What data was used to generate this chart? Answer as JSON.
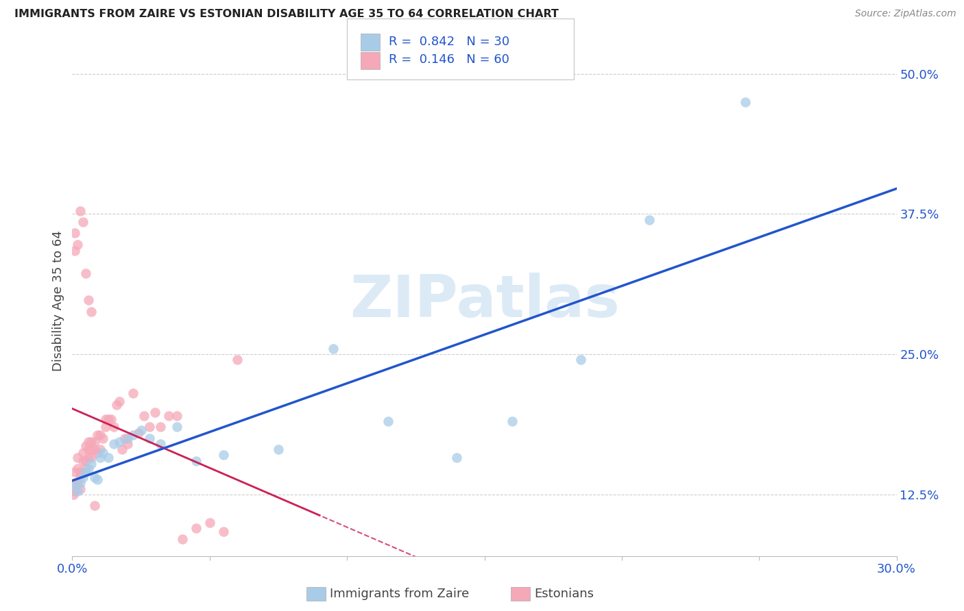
{
  "title": "IMMIGRANTS FROM ZAIRE VS ESTONIAN DISABILITY AGE 35 TO 64 CORRELATION CHART",
  "source": "Source: ZipAtlas.com",
  "ylabel": "Disability Age 35 to 64",
  "xlabel_legend1": "Immigrants from Zaire",
  "xlabel_legend2": "Estonians",
  "xlim": [
    0.0,
    0.3
  ],
  "ylim": [
    0.07,
    0.525
  ],
  "xticks": [
    0.0,
    0.05,
    0.1,
    0.15,
    0.2,
    0.25,
    0.3
  ],
  "xticklabels": [
    "0.0%",
    "",
    "",
    "",
    "",
    "",
    "30.0%"
  ],
  "ytick_positions": [
    0.125,
    0.25,
    0.375,
    0.5
  ],
  "ytick_labels": [
    "12.5%",
    "25.0%",
    "37.5%",
    "50.0%"
  ],
  "watermark": "ZIPatlas",
  "legend_R1": "0.842",
  "legend_N1": "30",
  "legend_R2": "0.146",
  "legend_N2": "60",
  "color_blue_scatter": "#a8cce8",
  "color_pink_scatter": "#f5a8b8",
  "color_blue_line": "#2255cc",
  "color_pink_line": "#cc2255",
  "color_legend_text": "#2255cc",
  "color_axis_right": "#2255cc",
  "color_axis_bottom": "#2255cc",
  "color_title": "#222222",
  "color_source": "#888888",
  "color_grid": "#cccccc",
  "blue_x": [
    0.001,
    0.002,
    0.003,
    0.004,
    0.005,
    0.006,
    0.007,
    0.008,
    0.009,
    0.01,
    0.011,
    0.013,
    0.015,
    0.017,
    0.02,
    0.022,
    0.025,
    0.028,
    0.032,
    0.038,
    0.045,
    0.055,
    0.075,
    0.095,
    0.115,
    0.14,
    0.16,
    0.185,
    0.21,
    0.245
  ],
  "blue_y": [
    0.132,
    0.128,
    0.135,
    0.14,
    0.145,
    0.148,
    0.152,
    0.14,
    0.138,
    0.158,
    0.162,
    0.158,
    0.17,
    0.172,
    0.175,
    0.178,
    0.182,
    0.175,
    0.17,
    0.185,
    0.155,
    0.16,
    0.165,
    0.255,
    0.19,
    0.158,
    0.19,
    0.245,
    0.37,
    0.475
  ],
  "pink_x": [
    0.0005,
    0.001,
    0.001,
    0.001,
    0.002,
    0.002,
    0.002,
    0.003,
    0.003,
    0.003,
    0.004,
    0.004,
    0.005,
    0.005,
    0.005,
    0.006,
    0.006,
    0.006,
    0.007,
    0.007,
    0.007,
    0.008,
    0.008,
    0.009,
    0.009,
    0.01,
    0.01,
    0.011,
    0.012,
    0.012,
    0.013,
    0.014,
    0.015,
    0.016,
    0.017,
    0.018,
    0.019,
    0.02,
    0.022,
    0.024,
    0.026,
    0.028,
    0.03,
    0.032,
    0.035,
    0.038,
    0.04,
    0.045,
    0.05,
    0.055,
    0.001,
    0.001,
    0.002,
    0.003,
    0.004,
    0.005,
    0.006,
    0.007,
    0.008,
    0.06
  ],
  "pink_y": [
    0.125,
    0.145,
    0.135,
    0.128,
    0.158,
    0.148,
    0.135,
    0.145,
    0.142,
    0.13,
    0.155,
    0.162,
    0.168,
    0.155,
    0.148,
    0.172,
    0.165,
    0.158,
    0.172,
    0.158,
    0.165,
    0.172,
    0.165,
    0.178,
    0.162,
    0.178,
    0.165,
    0.175,
    0.192,
    0.185,
    0.192,
    0.192,
    0.185,
    0.205,
    0.208,
    0.165,
    0.175,
    0.17,
    0.215,
    0.18,
    0.195,
    0.185,
    0.198,
    0.185,
    0.195,
    0.195,
    0.085,
    0.095,
    0.1,
    0.092,
    0.358,
    0.342,
    0.348,
    0.378,
    0.368,
    0.322,
    0.298,
    0.288,
    0.115,
    0.245
  ]
}
